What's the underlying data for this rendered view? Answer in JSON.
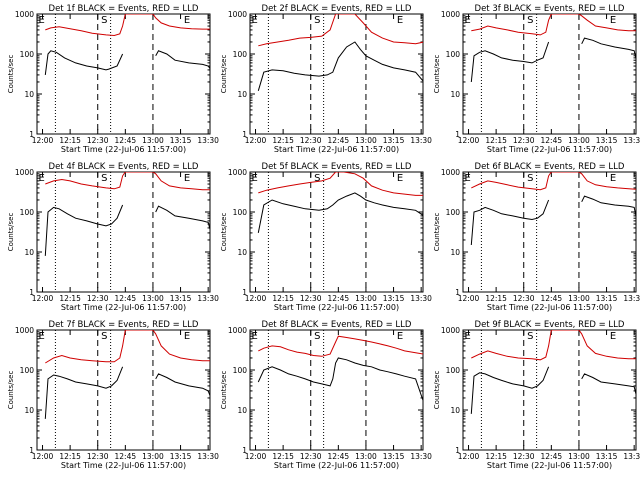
{
  "colors": {
    "events": "#000000",
    "lld": "#d00000",
    "axes": "#000000"
  },
  "chart_data": [
    {
      "type": "line",
      "title": "Det 1f BLACK = Events, RED = LLD",
      "ylabel": "Counts/sec",
      "xlabel": "Start Time (22-Jul-06 11:57:00)",
      "xticks": [
        "12:00",
        "12:15",
        "12:30",
        "12:45",
        "13:00",
        "13:15",
        "13:30"
      ],
      "yticks": [
        "1",
        "10",
        "100",
        "1000"
      ],
      "ylim": [
        1,
        1000
      ],
      "yscale": "log",
      "markers": [
        "E",
        "S",
        "E"
      ],
      "series": [
        {
          "name": "Events",
          "x": [
            0,
            3,
            4,
            5,
            7,
            10,
            14,
            18,
            22,
            25,
            26,
            29,
            31,
            32,
            42,
            43,
            44,
            47,
            50,
            55,
            60,
            62,
            63
          ],
          "y": [
            null,
            30,
            100,
            120,
            110,
            80,
            60,
            50,
            45,
            40,
            42,
            50,
            100,
            null,
            null,
            90,
            120,
            100,
            70,
            60,
            55,
            50,
            40
          ]
        },
        {
          "name": "LLD",
          "x": [
            0,
            3,
            5,
            8,
            12,
            16,
            20,
            25,
            28,
            30,
            31,
            32,
            42,
            43,
            45,
            48,
            52,
            56,
            60,
            63
          ],
          "y": [
            null,
            400,
            450,
            480,
            430,
            380,
            330,
            300,
            290,
            320,
            500,
            1000,
            1000,
            800,
            600,
            500,
            450,
            430,
            420,
            420
          ]
        }
      ]
    },
    {
      "type": "line",
      "title": "Det 2f BLACK = Events, RED = LLD",
      "ylabel": "Counts/sec",
      "xlabel": "Start Time (22-Jul-06 11:57:00)",
      "xticks": [
        "12:00",
        "12:15",
        "12:30",
        "12:45",
        "13:00",
        "13:15",
        "13:30"
      ],
      "yticks": [
        "1",
        "10",
        "100",
        "1000"
      ],
      "ylim": [
        1,
        1000
      ],
      "yscale": "log",
      "markers": [
        "E",
        "S",
        "E"
      ],
      "series": [
        {
          "name": "Events",
          "x": [
            0,
            3,
            5,
            8,
            12,
            16,
            20,
            25,
            28,
            30,
            32,
            35,
            38,
            40,
            42,
            45,
            48,
            52,
            56,
            60,
            63
          ],
          "y": [
            null,
            12,
            35,
            40,
            38,
            33,
            30,
            28,
            30,
            35,
            80,
            150,
            200,
            130,
            90,
            70,
            55,
            45,
            40,
            35,
            20
          ]
        },
        {
          "name": "LLD",
          "x": [
            0,
            3,
            6,
            10,
            14,
            18,
            22,
            26,
            29,
            31,
            34,
            38,
            41,
            44,
            48,
            52,
            56,
            60,
            63
          ],
          "y": [
            null,
            160,
            180,
            200,
            220,
            250,
            260,
            280,
            400,
            1000,
            1000,
            1000,
            600,
            350,
            250,
            200,
            190,
            180,
            200
          ]
        }
      ]
    },
    {
      "type": "line",
      "title": "Det 3f BLACK = Events, RED = LLD",
      "ylabel": "Counts/sec",
      "xlabel": "Start Time (22-Jul-06 11:57:00)",
      "xticks": [
        "12:00",
        "12:15",
        "12:30",
        "12:45",
        "13:00",
        "13:15",
        "13:30"
      ],
      "yticks": [
        "1",
        "10",
        "100",
        "1000"
      ],
      "ylim": [
        1,
        1000
      ],
      "yscale": "log",
      "markers": [
        "E",
        "S",
        "E"
      ],
      "series": [
        {
          "name": "Events",
          "x": [
            0,
            3,
            4,
            6,
            8,
            11,
            14,
            18,
            22,
            25,
            27,
            29,
            31,
            32,
            42,
            43,
            44,
            47,
            50,
            55,
            60,
            62,
            63
          ],
          "y": [
            null,
            20,
            90,
            110,
            120,
            100,
            80,
            70,
            65,
            60,
            70,
            80,
            200,
            null,
            null,
            180,
            250,
            220,
            180,
            150,
            130,
            120,
            60
          ]
        },
        {
          "name": "LLD",
          "x": [
            0,
            3,
            6,
            9,
            12,
            16,
            20,
            25,
            28,
            30,
            31,
            32,
            42,
            43,
            45,
            48,
            52,
            56,
            60,
            63
          ],
          "y": [
            null,
            380,
            420,
            500,
            450,
            400,
            350,
            320,
            300,
            350,
            700,
            1000,
            1000,
            900,
            700,
            500,
            450,
            400,
            380,
            380
          ]
        }
      ]
    },
    {
      "type": "line",
      "title": "Det 4f BLACK = Events, RED = LLD",
      "ylabel": "Counts/sec",
      "xlabel": "Start Time (22-Jul-06 11:57:00)",
      "xticks": [
        "12:00",
        "12:15",
        "12:30",
        "12:45",
        "13:00",
        "13:15",
        "13:30"
      ],
      "yticks": [
        "1",
        "10",
        "100",
        "1000"
      ],
      "ylim": [
        1,
        1000
      ],
      "yscale": "log",
      "markers": [
        "E",
        "S",
        "E"
      ],
      "series": [
        {
          "name": "Events",
          "x": [
            0,
            3,
            4,
            6,
            8,
            11,
            14,
            18,
            22,
            25,
            27,
            29,
            31,
            32,
            42,
            43,
            44,
            47,
            50,
            55,
            60,
            62,
            63
          ],
          "y": [
            null,
            8,
            100,
            130,
            120,
            90,
            70,
            60,
            50,
            45,
            50,
            70,
            150,
            null,
            null,
            100,
            140,
            110,
            80,
            70,
            60,
            55,
            30
          ]
        },
        {
          "name": "LLD",
          "x": [
            0,
            3,
            6,
            9,
            12,
            16,
            20,
            25,
            28,
            30,
            31,
            32,
            42,
            43,
            45,
            48,
            52,
            56,
            60,
            63
          ],
          "y": [
            null,
            500,
            600,
            650,
            600,
            500,
            450,
            400,
            380,
            420,
            800,
            1000,
            1000,
            900,
            600,
            450,
            400,
            380,
            360,
            360
          ]
        }
      ]
    },
    {
      "type": "line",
      "title": "Det 5f BLACK = Events, RED = LLD",
      "ylabel": "Counts/sec",
      "xlabel": "Start Time (22-Jul-06 11:57:00)",
      "xticks": [
        "12:00",
        "12:15",
        "12:30",
        "12:45",
        "13:00",
        "13:15",
        "13:30"
      ],
      "yticks": [
        "1",
        "10",
        "100",
        "1000"
      ],
      "ylim": [
        1,
        1000
      ],
      "yscale": "log",
      "markers": [
        "E",
        "S",
        "E"
      ],
      "series": [
        {
          "name": "Events",
          "x": [
            0,
            3,
            5,
            8,
            12,
            16,
            20,
            25,
            28,
            30,
            32,
            35,
            38,
            40,
            42,
            45,
            48,
            52,
            56,
            60,
            63
          ],
          "y": [
            null,
            30,
            150,
            200,
            160,
            140,
            120,
            110,
            120,
            150,
            200,
            250,
            300,
            250,
            200,
            170,
            150,
            130,
            120,
            110,
            80
          ]
        },
        {
          "name": "LLD",
          "x": [
            0,
            3,
            6,
            10,
            14,
            18,
            22,
            26,
            29,
            31,
            34,
            38,
            41,
            44,
            48,
            52,
            56,
            60,
            63
          ],
          "y": [
            null,
            300,
            350,
            400,
            450,
            500,
            550,
            600,
            700,
            1000,
            1000,
            900,
            700,
            450,
            350,
            300,
            280,
            260,
            260
          ]
        }
      ]
    },
    {
      "type": "line",
      "title": "Det 6f BLACK = Events, RED = LLD",
      "ylabel": "Counts/sec",
      "xlabel": "Start Time (22-Jul-06 11:57:00)",
      "xticks": [
        "12:00",
        "12:15",
        "12:30",
        "12:45",
        "13:00",
        "13:15",
        "13:30"
      ],
      "yticks": [
        "1",
        "10",
        "100",
        "1000"
      ],
      "ylim": [
        1,
        1000
      ],
      "yscale": "log",
      "markers": [
        "E",
        "S",
        "E"
      ],
      "series": [
        {
          "name": "Events",
          "x": [
            0,
            3,
            4,
            6,
            8,
            11,
            14,
            18,
            22,
            25,
            27,
            29,
            31,
            32,
            42,
            43,
            44,
            47,
            50,
            55,
            60,
            62,
            63
          ],
          "y": [
            null,
            15,
            100,
            110,
            130,
            110,
            90,
            80,
            70,
            65,
            70,
            90,
            200,
            null,
            null,
            180,
            250,
            210,
            170,
            150,
            140,
            130,
            60
          ]
        },
        {
          "name": "LLD",
          "x": [
            0,
            3,
            6,
            9,
            12,
            16,
            20,
            25,
            28,
            30,
            31,
            32,
            42,
            43,
            45,
            48,
            52,
            56,
            60,
            63
          ],
          "y": [
            null,
            400,
            500,
            600,
            550,
            480,
            420,
            380,
            360,
            400,
            800,
            1000,
            1000,
            900,
            600,
            480,
            430,
            400,
            380,
            370
          ]
        }
      ]
    },
    {
      "type": "line",
      "title": "Det 7f BLACK = Events, RED = LLD",
      "ylabel": "Counts/sec",
      "xlabel": "Start Time (22-Jul-06 11:57:00)",
      "xticks": [
        "12:00",
        "12:15",
        "12:30",
        "12:45",
        "13:00",
        "13:15",
        "13:30"
      ],
      "yticks": [
        "1",
        "10",
        "100",
        "1000"
      ],
      "ylim": [
        1,
        1000
      ],
      "yscale": "log",
      "markers": [
        "E",
        "S",
        "E"
      ],
      "series": [
        {
          "name": "Events",
          "x": [
            0,
            3,
            4,
            6,
            8,
            11,
            14,
            18,
            22,
            25,
            27,
            29,
            31,
            32,
            42,
            43,
            44,
            47,
            50,
            55,
            60,
            62,
            63
          ],
          "y": [
            null,
            6,
            60,
            75,
            70,
            60,
            50,
            45,
            40,
            35,
            40,
            55,
            120,
            null,
            null,
            60,
            80,
            65,
            50,
            40,
            35,
            30,
            20
          ]
        },
        {
          "name": "LLD",
          "x": [
            0,
            3,
            6,
            9,
            12,
            16,
            20,
            25,
            28,
            30,
            31,
            32,
            42,
            43,
            45,
            48,
            52,
            56,
            60,
            63
          ],
          "y": [
            null,
            150,
            200,
            230,
            200,
            180,
            170,
            160,
            160,
            200,
            400,
            1000,
            1000,
            800,
            400,
            250,
            200,
            180,
            170,
            170
          ]
        }
      ]
    },
    {
      "type": "line",
      "title": "Det 8f BLACK = Events, RED = LLD",
      "ylabel": "Counts/sec",
      "xlabel": "Start Time (22-Jul-06 11:57:00)",
      "xticks": [
        "12:00",
        "12:15",
        "12:30",
        "12:45",
        "13:00",
        "13:15",
        "13:30"
      ],
      "yticks": [
        "1",
        "10",
        "100",
        "1000"
      ],
      "ylim": [
        1,
        1000
      ],
      "yscale": "log",
      "markers": [
        "E",
        "S",
        "E"
      ],
      "series": [
        {
          "name": "Events",
          "x": [
            0,
            3,
            5,
            8,
            11,
            14,
            17,
            20,
            23,
            26,
            29,
            30,
            31,
            32,
            35,
            38,
            41,
            44,
            47,
            50,
            53,
            56,
            60,
            63
          ],
          "y": [
            null,
            50,
            100,
            120,
            100,
            80,
            70,
            60,
            50,
            45,
            40,
            60,
            150,
            200,
            180,
            150,
            130,
            120,
            100,
            90,
            80,
            70,
            60,
            15
          ]
        },
        {
          "name": "LLD",
          "x": [
            0,
            3,
            5,
            8,
            11,
            14,
            17,
            20,
            23,
            26,
            29,
            31,
            32,
            35,
            38,
            41,
            44,
            47,
            50,
            53,
            56,
            60,
            63
          ],
          "y": [
            null,
            300,
            350,
            400,
            380,
            320,
            280,
            260,
            230,
            220,
            250,
            500,
            700,
            650,
            600,
            550,
            500,
            450,
            400,
            350,
            300,
            270,
            250
          ]
        }
      ]
    },
    {
      "type": "line",
      "title": "Det 9f BLACK = Events, RED = LLD",
      "ylabel": "Counts/sec",
      "xlabel": "Start Time (22-Jul-06 11:57:00)",
      "xticks": [
        "12:00",
        "12:15",
        "12:30",
        "12:45",
        "13:00",
        "13:15",
        "13:30"
      ],
      "yticks": [
        "1",
        "10",
        "100",
        "1000"
      ],
      "ylim": [
        1,
        1000
      ],
      "yscale": "log",
      "markers": [
        "E",
        "S",
        "E"
      ],
      "series": [
        {
          "name": "Events",
          "x": [
            0,
            3,
            4,
            6,
            8,
            11,
            14,
            18,
            22,
            25,
            27,
            29,
            31,
            32,
            42,
            43,
            44,
            47,
            50,
            55,
            60,
            62,
            63
          ],
          "y": [
            null,
            8,
            70,
            85,
            80,
            65,
            55,
            45,
            40,
            35,
            40,
            55,
            120,
            null,
            null,
            60,
            80,
            65,
            50,
            45,
            40,
            38,
            20
          ]
        },
        {
          "name": "LLD",
          "x": [
            0,
            3,
            6,
            9,
            12,
            16,
            20,
            25,
            28,
            30,
            31,
            32,
            42,
            43,
            45,
            48,
            52,
            56,
            60,
            63
          ],
          "y": [
            null,
            200,
            250,
            300,
            260,
            220,
            200,
            190,
            180,
            210,
            400,
            1000,
            1000,
            800,
            400,
            260,
            220,
            200,
            190,
            190
          ]
        }
      ]
    }
  ]
}
